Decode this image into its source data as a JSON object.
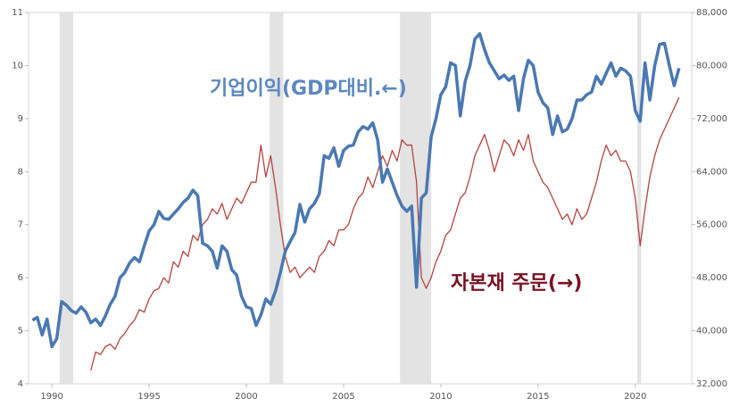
{
  "chart_data": {
    "type": "line",
    "annotations": [
      {
        "text": "기업이익(GDP대비.←)",
        "color": "#5b88c0"
      },
      {
        "text": "자본재 주문(→)",
        "color": "#7a1022"
      }
    ],
    "xlim": [
      1988.8,
      2022.9
    ],
    "xticks": [
      1990,
      1995,
      2000,
      2005,
      2010,
      2015,
      2020
    ],
    "ylim": [
      4,
      11
    ],
    "yticks": [
      4,
      5,
      6,
      7,
      8,
      9,
      10,
      11
    ],
    "y2lim": [
      32000,
      88000
    ],
    "y2ticks": [
      {
        "value": 32000,
        "label": "32,000"
      },
      {
        "value": 40000,
        "label": "40,000"
      },
      {
        "value": 48000,
        "label": "48,000"
      },
      {
        "value": 56000,
        "label": "56,000"
      },
      {
        "value": 64000,
        "label": "64,000"
      },
      {
        "value": 72000,
        "label": "72,000"
      },
      {
        "value": 80000,
        "label": "80,000"
      },
      {
        "value": 88000,
        "label": "88,000"
      }
    ],
    "shaded_periods": [
      [
        1990.4,
        1991.1
      ],
      [
        2001.2,
        2001.9
      ],
      [
        2007.9,
        2009.5
      ],
      [
        2020.1,
        2020.3
      ]
    ],
    "shade_color": "#e3e3e3",
    "series": [
      {
        "color": "#4a78b3",
        "axis": "y",
        "x": [
          1989,
          1989.25,
          1989.5,
          1989.75,
          1990,
          1990.25,
          1990.5,
          1990.75,
          1991,
          1991.25,
          1991.5,
          1991.75,
          1992,
          1992.25,
          1992.5,
          1992.75,
          1993,
          1993.25,
          1993.5,
          1993.75,
          1994,
          1994.25,
          1994.5,
          1994.75,
          1995,
          1995.25,
          1995.5,
          1995.75,
          1996,
          1996.25,
          1996.5,
          1996.75,
          1997,
          1997.25,
          1997.5,
          1997.75,
          1998,
          1998.25,
          1998.5,
          1998.75,
          1999,
          1999.25,
          1999.5,
          1999.75,
          2000,
          2000.25,
          2000.5,
          2000.75,
          2001,
          2001.25,
          2001.5,
          2001.75,
          2002,
          2002.25,
          2002.5,
          2002.75,
          2003,
          2003.25,
          2003.5,
          2003.75,
          2004,
          2004.25,
          2004.5,
          2004.75,
          2005,
          2005.25,
          2005.5,
          2005.75,
          2006,
          2006.25,
          2006.5,
          2006.75,
          2007,
          2007.25,
          2007.5,
          2007.75,
          2008,
          2008.25,
          2008.5,
          2008.75,
          2009,
          2009.25,
          2009.5,
          2009.75,
          2010,
          2010.25,
          2010.5,
          2010.75,
          2011,
          2011.25,
          2011.5,
          2011.75,
          2012,
          2012.25,
          2012.5,
          2012.75,
          2013,
          2013.25,
          2013.5,
          2013.75,
          2014,
          2014.25,
          2014.5,
          2014.75,
          2015,
          2015.25,
          2015.5,
          2015.75,
          2016,
          2016.25,
          2016.5,
          2016.75,
          2017,
          2017.25,
          2017.5,
          2017.75,
          2018,
          2018.25,
          2018.5,
          2018.75,
          2019,
          2019.25,
          2019.5,
          2019.75,
          2020,
          2020.25,
          2020.5,
          2020.75,
          2021,
          2021.25,
          2021.5,
          2021.75,
          2022,
          2022.25
        ],
        "values": [
          5.2,
          5.25,
          4.92,
          5.22,
          4.7,
          4.85,
          5.55,
          5.48,
          5.38,
          5.33,
          5.45,
          5.35,
          5.15,
          5.22,
          5.1,
          5.28,
          5.5,
          5.65,
          6.0,
          6.1,
          6.28,
          6.38,
          6.3,
          6.6,
          6.88,
          7.0,
          7.25,
          7.12,
          7.1,
          7.2,
          7.3,
          7.42,
          7.5,
          7.65,
          7.55,
          6.65,
          6.6,
          6.5,
          6.18,
          6.6,
          6.5,
          6.15,
          6.05,
          5.65,
          5.45,
          5.42,
          5.1,
          5.3,
          5.6,
          5.5,
          5.75,
          6.1,
          6.5,
          6.68,
          6.85,
          7.38,
          7.05,
          7.3,
          7.4,
          7.58,
          8.3,
          8.25,
          8.45,
          8.1,
          8.4,
          8.48,
          8.5,
          8.75,
          8.85,
          8.8,
          8.92,
          8.6,
          7.8,
          8.05,
          7.8,
          7.55,
          7.35,
          7.25,
          7.35,
          5.82,
          7.5,
          7.6,
          8.65,
          9.0,
          9.45,
          9.6,
          10.05,
          10.0,
          9.05,
          9.7,
          10.0,
          10.5,
          10.6,
          10.3,
          10.05,
          9.9,
          9.75,
          9.82,
          9.72,
          9.8,
          9.15,
          9.75,
          10.1,
          10.0,
          9.5,
          9.3,
          9.2,
          8.7,
          9.05,
          8.75,
          8.8,
          9.0,
          9.35,
          9.35,
          9.45,
          9.5,
          9.8,
          9.65,
          9.85,
          10.05,
          9.8,
          9.95,
          9.9,
          9.8,
          9.15,
          8.95,
          10.05,
          9.35,
          10.0,
          10.4,
          10.42,
          10.0,
          9.62,
          9.95
        ]
      },
      {
        "color": "#b5423f",
        "axis": "y2",
        "x": [
          1992,
          1992.25,
          1992.5,
          1992.75,
          1993,
          1993.25,
          1993.5,
          1993.75,
          1994,
          1994.25,
          1994.5,
          1994.75,
          1995,
          1995.25,
          1995.5,
          1995.75,
          1996,
          1996.25,
          1996.5,
          1996.75,
          1997,
          1997.25,
          1997.5,
          1997.75,
          1998,
          1998.25,
          1998.5,
          1998.75,
          1999,
          1999.25,
          1999.5,
          1999.75,
          2000,
          2000.25,
          2000.5,
          2000.75,
          2001,
          2001.25,
          2001.5,
          2001.75,
          2002,
          2002.25,
          2002.5,
          2002.75,
          2003,
          2003.25,
          2003.5,
          2003.75,
          2004,
          2004.25,
          2004.5,
          2004.75,
          2005,
          2005.25,
          2005.5,
          2005.75,
          2006,
          2006.25,
          2006.5,
          2006.75,
          2007,
          2007.25,
          2007.5,
          2007.75,
          2008,
          2008.25,
          2008.5,
          2008.75,
          2009,
          2009.25,
          2009.5,
          2009.75,
          2010,
          2010.25,
          2010.5,
          2010.75,
          2011,
          2011.25,
          2011.5,
          2011.75,
          2012,
          2012.25,
          2012.5,
          2012.75,
          2013,
          2013.25,
          2013.5,
          2013.75,
          2014,
          2014.25,
          2014.5,
          2014.75,
          2015,
          2015.25,
          2015.5,
          2015.75,
          2016,
          2016.25,
          2016.5,
          2016.75,
          2017,
          2017.25,
          2017.5,
          2017.75,
          2018,
          2018.25,
          2018.5,
          2018.75,
          2019,
          2019.25,
          2019.5,
          2019.75,
          2020,
          2020.25,
          2020.5,
          2020.75,
          2021,
          2021.25,
          2021.5,
          2021.75,
          2022,
          2022.25
        ],
        "values": [
          34000,
          36800,
          36400,
          37600,
          38000,
          37200,
          38800,
          39600,
          40800,
          41600,
          43200,
          42800,
          44800,
          46000,
          46400,
          48000,
          47200,
          50400,
          49600,
          52000,
          51200,
          54400,
          53600,
          56000,
          56800,
          58400,
          57600,
          59200,
          56800,
          58400,
          60000,
          59200,
          60800,
          62400,
          62400,
          68000,
          63200,
          66400,
          61600,
          56000,
          51200,
          48800,
          49600,
          48000,
          48800,
          49600,
          48800,
          51200,
          52000,
          53600,
          52800,
          55200,
          55200,
          56000,
          58400,
          60000,
          60800,
          63200,
          61600,
          64000,
          66400,
          64800,
          67200,
          65600,
          68800,
          68000,
          68000,
          62400,
          48000,
          46400,
          48000,
          50400,
          52000,
          54400,
          55200,
          57600,
          60000,
          60800,
          63200,
          66400,
          68000,
          69600,
          67200,
          64000,
          66400,
          68800,
          68000,
          66400,
          68800,
          67200,
          69600,
          65600,
          64000,
          62400,
          61600,
          60000,
          58400,
          56800,
          57600,
          56000,
          58400,
          56800,
          57600,
          60000,
          62400,
          65600,
          68000,
          66400,
          67200,
          65600,
          65600,
          64000,
          60000,
          52800,
          58400,
          63200,
          66400,
          68800,
          70400,
          72000,
          73600,
          75200
        ]
      }
    ]
  }
}
